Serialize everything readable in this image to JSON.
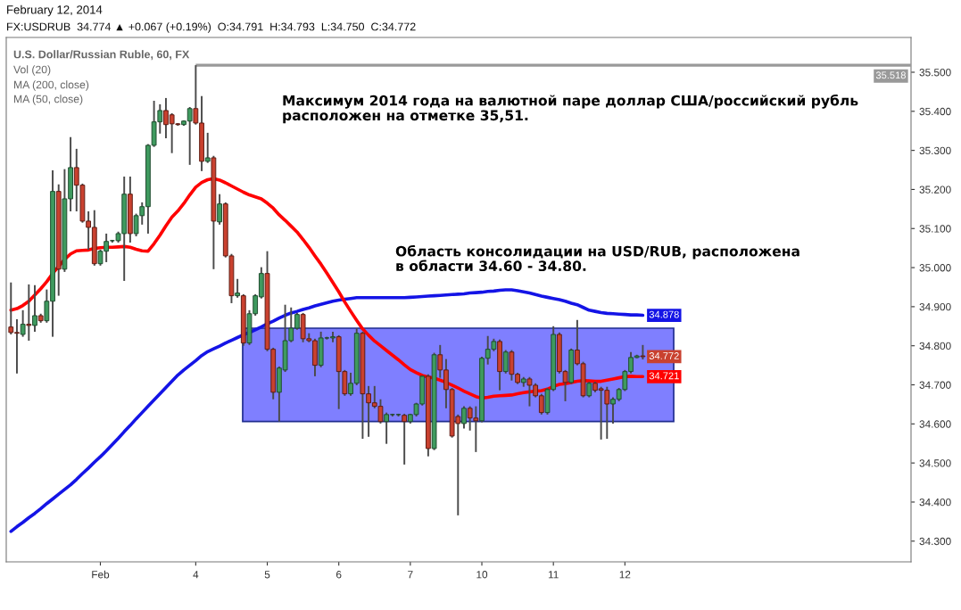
{
  "chart_data": {
    "type": "candlestick",
    "title": "U.S. Dollar/Russian Ruble, 60, FX",
    "annotations": [
      "February 12, 2014",
      "FX:USDRUB  34.774 ▲ +0.067 (+0.19%)  O:34.791  H:34.793  L:34.750  C:34.772",
      "Vol (20)",
      "MA (200, close)",
      "MA (50, close)",
      "Максимум 2014 года на валютной паре доллар США/российский рубль\nрасположен на отметке 35,51.",
      "Область консолидации на USD/RUB, расположена\nв области 34.60 - 34.80."
    ],
    "categories": [
      null,
      null,
      null,
      null,
      null,
      null,
      null,
      null,
      null,
      null,
      null,
      null,
      null,
      null,
      null,
      "Feb",
      null,
      null,
      null,
      null,
      null,
      null,
      null,
      null,
      null,
      null,
      null,
      null,
      null,
      null,
      null,
      "4",
      null,
      null,
      null,
      null,
      null,
      null,
      null,
      null,
      null,
      null,
      null,
      "5",
      null,
      null,
      null,
      null,
      null,
      null,
      null,
      null,
      null,
      null,
      null,
      "6",
      null,
      null,
      null,
      null,
      null,
      null,
      null,
      null,
      null,
      null,
      null,
      "7",
      null,
      null,
      null,
      null,
      null,
      null,
      null,
      null,
      null,
      null,
      null,
      "10",
      null,
      null,
      null,
      null,
      null,
      null,
      null,
      null,
      null,
      null,
      null,
      "11",
      null,
      null,
      null,
      null,
      null,
      null,
      null,
      null,
      null,
      null,
      null,
      "12",
      null,
      null,
      null
    ],
    "ohlc": [
      [
        34.848,
        34.962,
        34.829,
        34.834
      ],
      [
        34.834,
        34.868,
        34.729,
        34.832
      ],
      [
        34.829,
        34.891,
        34.823,
        34.855
      ],
      [
        34.855,
        34.957,
        34.813,
        34.852
      ],
      [
        34.852,
        34.955,
        34.836,
        34.877
      ],
      [
        34.877,
        34.882,
        34.859,
        34.864
      ],
      [
        34.864,
        34.944,
        34.859,
        34.914
      ],
      [
        34.914,
        35.249,
        34.823,
        35.195
      ],
      [
        35.195,
        35.213,
        34.928,
        34.996
      ],
      [
        34.996,
        35.252,
        34.989,
        35.176
      ],
      [
        35.176,
        35.334,
        35.144,
        35.256
      ],
      [
        35.256,
        35.304,
        35.144,
        35.211
      ],
      [
        35.211,
        35.215,
        35.115,
        35.119
      ],
      [
        35.119,
        35.144,
        35.046,
        35.103
      ],
      [
        35.103,
        35.147,
        35.005,
        35.01
      ],
      [
        35.01,
        35.046,
        35.005,
        35.042
      ],
      [
        35.042,
        35.087,
        35.014,
        35.067
      ],
      [
        35.069,
        35.071,
        35.064,
        35.069
      ],
      [
        35.069,
        35.092,
        35.064,
        35.087
      ],
      [
        35.087,
        35.233,
        34.966,
        35.188
      ],
      [
        35.188,
        35.233,
        35.064,
        35.087
      ],
      [
        35.087,
        35.138,
        35.08,
        35.133
      ],
      [
        35.133,
        35.167,
        35.11,
        35.156
      ],
      [
        35.156,
        35.316,
        35.087,
        35.313
      ],
      [
        35.313,
        35.427,
        35.309,
        35.373
      ],
      [
        35.373,
        35.418,
        35.343,
        35.402
      ],
      [
        35.402,
        35.434,
        35.331,
        35.366
      ],
      [
        35.391,
        35.395,
        35.293,
        35.368
      ],
      [
        35.368,
        35.37,
        35.363,
        35.366
      ],
      [
        35.366,
        35.377,
        35.363,
        35.375
      ],
      [
        35.375,
        35.411,
        35.263,
        35.407
      ],
      [
        35.407,
        35.518,
        35.366,
        35.37
      ],
      [
        35.37,
        35.439,
        35.247,
        35.272
      ],
      [
        35.272,
        35.345,
        35.268,
        35.281
      ],
      [
        35.281,
        35.286,
        34.996,
        35.119
      ],
      [
        35.117,
        35.188,
        35.11,
        35.163
      ],
      [
        35.163,
        35.167,
        35.026,
        35.03
      ],
      [
        35.03,
        35.035,
        34.909,
        34.928
      ],
      [
        34.928,
        34.971,
        34.923,
        34.935
      ],
      [
        34.928,
        34.932,
        34.8,
        34.807
      ],
      [
        34.807,
        34.891,
        34.802,
        34.882
      ],
      [
        34.882,
        34.932,
        34.877,
        34.928
      ],
      [
        34.925,
        35.001,
        34.921,
        34.985
      ],
      [
        34.985,
        35.042,
        34.786,
        34.791
      ],
      [
        34.791,
        34.795,
        34.663,
        34.681
      ],
      [
        34.681,
        34.747,
        34.606,
        34.743
      ],
      [
        34.738,
        34.905,
        34.733,
        34.813
      ],
      [
        34.813,
        34.898,
        34.809,
        34.845
      ],
      [
        34.845,
        34.884,
        34.841,
        34.88
      ],
      [
        34.88,
        34.884,
        34.809,
        34.818
      ],
      [
        34.818,
        34.832,
        34.809,
        34.813
      ],
      [
        34.813,
        34.818,
        34.722,
        34.75
      ],
      [
        34.75,
        34.836,
        34.745,
        34.82
      ],
      [
        34.82,
        34.823,
        34.816,
        34.82
      ],
      [
        34.82,
        34.836,
        34.809,
        34.823
      ],
      [
        34.823,
        34.827,
        34.638,
        34.734
      ],
      [
        34.734,
        34.738,
        34.672,
        34.677
      ],
      [
        34.677,
        34.731,
        34.672,
        34.704
      ],
      [
        34.704,
        34.845,
        34.699,
        34.832
      ],
      [
        34.832,
        34.836,
        34.562,
        34.677
      ],
      [
        34.677,
        34.697,
        34.567,
        34.654
      ],
      [
        34.654,
        34.697,
        34.64,
        34.645
      ],
      [
        34.645,
        34.663,
        34.601,
        34.606
      ],
      [
        34.606,
        34.629,
        34.549,
        34.624
      ],
      [
        34.624,
        34.626,
        34.619,
        34.624
      ],
      [
        34.624,
        34.626,
        34.619,
        34.624
      ],
      [
        34.622,
        34.626,
        34.496,
        34.606
      ],
      [
        34.606,
        34.626,
        34.601,
        34.624
      ],
      [
        34.624,
        34.654,
        34.619,
        34.651
      ],
      [
        34.651,
        34.724,
        34.647,
        34.722
      ],
      [
        34.722,
        34.727,
        34.517,
        34.537
      ],
      [
        34.537,
        34.782,
        34.533,
        34.777
      ],
      [
        34.777,
        34.802,
        34.718,
        34.738
      ],
      [
        34.738,
        34.766,
        34.64,
        34.688
      ],
      [
        34.688,
        34.692,
        34.565,
        34.569
      ],
      [
        34.619,
        34.624,
        34.366,
        34.601
      ],
      [
        34.601,
        34.645,
        34.588,
        34.64
      ],
      [
        34.64,
        34.645,
        34.583,
        34.615
      ],
      [
        34.615,
        34.645,
        34.528,
        34.608
      ],
      [
        34.608,
        34.772,
        34.604,
        34.768
      ],
      [
        34.768,
        34.825,
        34.752,
        34.791
      ],
      [
        34.791,
        34.818,
        34.786,
        34.811
      ],
      [
        34.811,
        34.816,
        34.686,
        34.734
      ],
      [
        34.734,
        34.789,
        34.729,
        34.784
      ],
      [
        34.784,
        34.789,
        34.711,
        34.727
      ],
      [
        34.727,
        34.731,
        34.702,
        34.706
      ],
      [
        34.706,
        34.72,
        34.695,
        34.715
      ],
      [
        34.715,
        34.72,
        34.645,
        34.699
      ],
      [
        34.699,
        34.704,
        34.668,
        34.672
      ],
      [
        34.672,
        34.677,
        34.624,
        34.629
      ],
      [
        34.629,
        34.692,
        34.624,
        34.688
      ],
      [
        34.688,
        34.85,
        34.684,
        34.829
      ],
      [
        34.829,
        34.834,
        34.729,
        34.734
      ],
      [
        34.734,
        34.738,
        34.658,
        34.706
      ],
      [
        34.706,
        34.793,
        34.702,
        34.789
      ],
      [
        34.789,
        34.866,
        34.75,
        34.754
      ],
      [
        34.754,
        34.759,
        34.668,
        34.672
      ],
      [
        34.672,
        34.708,
        34.668,
        34.704
      ],
      [
        34.704,
        34.708,
        34.681,
        34.686
      ],
      [
        34.69,
        34.695,
        34.56,
        34.686
      ],
      [
        34.686,
        34.695,
        34.562,
        34.651
      ],
      [
        34.651,
        34.668,
        34.601,
        34.663
      ],
      [
        34.663,
        34.692,
        34.658,
        34.688
      ],
      [
        34.688,
        34.738,
        34.684,
        34.734
      ],
      [
        34.734,
        34.784,
        34.729,
        34.77
      ],
      [
        34.77,
        34.777,
        34.768,
        34.774
      ],
      [
        34.774,
        34.802,
        34.765,
        34.772
      ]
    ],
    "value_labels": [
      null,
      null,
      null,
      null,
      null,
      null,
      null,
      null,
      null,
      null,
      null,
      null,
      null,
      null,
      null,
      null,
      null,
      null,
      null,
      null,
      null,
      null,
      null,
      null,
      null,
      null,
      null,
      null,
      null,
      null,
      null,
      null,
      null,
      null,
      null,
      null,
      null,
      null,
      null,
      null,
      null,
      null,
      null,
      null,
      null,
      null,
      null,
      null,
      null,
      null,
      null,
      null,
      null,
      null,
      null,
      null,
      null,
      null,
      null,
      null,
      null,
      null,
      null,
      null,
      null,
      null,
      null,
      null,
      null,
      null,
      null,
      null,
      null,
      null,
      null,
      null,
      null,
      null,
      null,
      null,
      null,
      null,
      null,
      null,
      null,
      null,
      null,
      null,
      null,
      null,
      null,
      null,
      null,
      null,
      null,
      null,
      null,
      null,
      null,
      null,
      null,
      null,
      null,
      null,
      null,
      null,
      "34.772"
    ],
    "series": [
      {
        "type": "line",
        "color": "#1414e6",
        "values": [
          34.325,
          34.337,
          34.348,
          34.36,
          34.371,
          34.383,
          34.396,
          34.408,
          34.42,
          34.432,
          34.444,
          34.458,
          34.473,
          34.487,
          34.502,
          34.516,
          34.531,
          34.547,
          34.563,
          34.58,
          34.596,
          34.613,
          34.629,
          34.645,
          34.661,
          34.677,
          34.693,
          34.709,
          34.725,
          34.738,
          34.75,
          34.762,
          34.775,
          34.785,
          34.792,
          34.799,
          34.807,
          34.814,
          34.821,
          34.828,
          34.834,
          34.841,
          34.848,
          34.856,
          34.863,
          34.871,
          34.878,
          34.884,
          34.888,
          34.893,
          34.897,
          34.902,
          34.906,
          34.91,
          34.914,
          34.917,
          34.919,
          34.921,
          34.923,
          34.923,
          34.923,
          34.923,
          34.923,
          34.923,
          34.923,
          34.923,
          34.923,
          34.924,
          34.925,
          34.926,
          34.927,
          34.928,
          34.929,
          34.93,
          34.931,
          34.932,
          34.933,
          34.935,
          34.936,
          34.937,
          34.939,
          34.94,
          34.942,
          34.943,
          34.943,
          34.941,
          34.938,
          34.935,
          34.931,
          34.927,
          34.924,
          34.921,
          34.918,
          34.914,
          34.909,
          34.905,
          34.898,
          34.891,
          34.888,
          34.885,
          34.883,
          34.882,
          34.881,
          34.88,
          34.879,
          34.879,
          34.878
        ],
        "value_labels": [
          null,
          null,
          null,
          null,
          null,
          null,
          null,
          null,
          null,
          null,
          null,
          null,
          null,
          null,
          null,
          null,
          null,
          null,
          null,
          null,
          null,
          null,
          null,
          null,
          null,
          null,
          null,
          null,
          null,
          null,
          null,
          null,
          null,
          null,
          null,
          null,
          null,
          null,
          null,
          null,
          null,
          null,
          null,
          null,
          null,
          null,
          null,
          null,
          null,
          null,
          null,
          null,
          null,
          null,
          null,
          null,
          null,
          null,
          null,
          null,
          null,
          null,
          null,
          null,
          null,
          null,
          null,
          null,
          null,
          null,
          null,
          null,
          null,
          null,
          null,
          null,
          null,
          null,
          null,
          null,
          null,
          null,
          null,
          null,
          null,
          null,
          null,
          null,
          null,
          null,
          null,
          null,
          null,
          null,
          null,
          null,
          null,
          null,
          null,
          null,
          null,
          null,
          null,
          null,
          null,
          null,
          "34.878"
        ]
      },
      {
        "type": "line",
        "color": "#ff0000",
        "values": [
          34.891,
          34.895,
          34.903,
          34.914,
          34.93,
          34.946,
          34.964,
          34.985,
          35.003,
          35.021,
          35.035,
          35.043,
          35.044,
          35.045,
          35.049,
          35.051,
          35.052,
          35.052,
          35.053,
          35.054,
          35.052,
          35.047,
          35.043,
          35.042,
          35.061,
          35.083,
          35.107,
          35.129,
          35.145,
          35.164,
          35.186,
          35.206,
          35.218,
          35.225,
          35.228,
          35.224,
          35.217,
          35.209,
          35.201,
          35.193,
          35.186,
          35.181,
          35.176,
          35.165,
          35.152,
          35.135,
          35.121,
          35.106,
          35.091,
          35.072,
          35.052,
          35.03,
          35.009,
          34.986,
          34.962,
          34.938,
          34.912,
          34.888,
          34.865,
          34.843,
          34.827,
          34.812,
          34.8,
          34.788,
          34.776,
          34.764,
          34.751,
          34.739,
          34.731,
          34.724,
          34.72,
          34.717,
          34.712,
          34.706,
          34.699,
          34.692,
          34.684,
          34.677,
          34.67,
          34.666,
          34.668,
          34.671,
          34.672,
          34.673,
          34.674,
          34.677,
          34.68,
          34.682,
          34.684,
          34.685,
          34.689,
          34.696,
          34.701,
          34.703,
          34.706,
          34.709,
          34.711,
          34.71,
          34.709,
          34.709,
          34.712,
          34.715,
          34.718,
          34.721,
          34.722,
          34.721,
          34.721
        ],
        "value_labels": [
          null,
          null,
          null,
          null,
          null,
          null,
          null,
          null,
          null,
          null,
          null,
          null,
          null,
          null,
          null,
          null,
          null,
          null,
          null,
          null,
          null,
          null,
          null,
          null,
          null,
          null,
          null,
          null,
          null,
          null,
          null,
          null,
          null,
          null,
          null,
          null,
          null,
          null,
          null,
          null,
          null,
          null,
          null,
          null,
          null,
          null,
          null,
          null,
          null,
          null,
          null,
          null,
          null,
          null,
          null,
          null,
          null,
          null,
          null,
          null,
          null,
          null,
          null,
          null,
          null,
          null,
          null,
          null,
          null,
          null,
          null,
          null,
          null,
          null,
          null,
          null,
          null,
          null,
          null,
          null,
          null,
          null,
          null,
          null,
          null,
          null,
          null,
          null,
          null,
          null,
          null,
          null,
          null,
          null,
          null,
          null,
          null,
          null,
          null,
          null,
          null,
          null,
          null,
          null,
          null,
          null,
          "34.721"
        ]
      }
    ],
    "ylim": [
      34.247,
      35.589
    ],
    "yticks": [
      {
        "value": 34.3,
        "label": "34.300"
      },
      {
        "value": 34.4,
        "label": "34.400"
      },
      {
        "value": 34.5,
        "label": "34.500"
      },
      {
        "value": 34.6,
        "label": "34.600"
      },
      {
        "value": 34.7,
        "label": "34.700"
      },
      {
        "value": 34.8,
        "label": "34.800"
      },
      {
        "value": 34.9,
        "label": "34.900"
      },
      {
        "value": 35.0,
        "label": "35.000"
      },
      {
        "value": 35.1,
        "label": "35.100"
      },
      {
        "value": 35.2,
        "label": "35.200"
      },
      {
        "value": 35.3,
        "label": "35.300"
      },
      {
        "value": 35.4,
        "label": "35.400"
      },
      {
        "value": 35.5,
        "label": "35.500"
      }
    ],
    "ref_lines": [
      {
        "axis": "y",
        "value": 35.518,
        "label": "35.518",
        "color": "#999999"
      }
    ],
    "bands": [
      {
        "axis": "y",
        "from": 34.606,
        "to": 34.845,
        "color": "#0000ff"
      }
    ]
  }
}
